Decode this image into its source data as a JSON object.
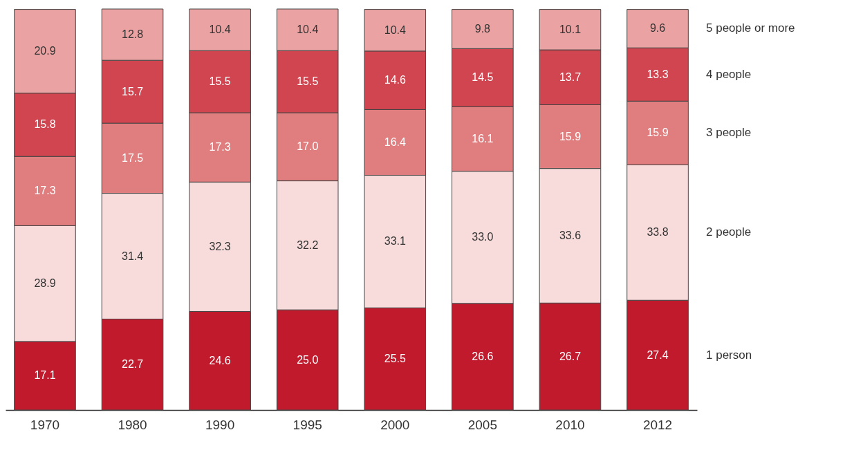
{
  "chart_data": {
    "type": "bar",
    "stacked": true,
    "categories": [
      "1970",
      "1980",
      "1990",
      "1995",
      "2000",
      "2005",
      "2010",
      "2012"
    ],
    "series": [
      {
        "name": "1 person",
        "color": "#c01a2c",
        "values": [
          17.1,
          22.7,
          24.6,
          25.0,
          25.5,
          26.6,
          26.7,
          27.4
        ],
        "value_labels": [
          "17.1",
          "22.7",
          "24.6",
          "25.0",
          "25.5",
          "26.6",
          "26.7",
          "27.4"
        ]
      },
      {
        "name": "2 people",
        "color": "#f8dcdb",
        "values": [
          28.9,
          31.4,
          32.3,
          32.2,
          33.1,
          33.0,
          33.6,
          33.8
        ],
        "value_labels": [
          "28.9",
          "31.4",
          "32.3",
          "32.2",
          "33.1",
          "33.0",
          "33.6",
          "33.8"
        ]
      },
      {
        "name": "3 people",
        "color": "#e07e7f",
        "values": [
          17.3,
          17.5,
          17.3,
          17.0,
          16.4,
          16.1,
          15.9,
          15.9
        ],
        "value_labels": [
          "17.3",
          "17.5",
          "17.3",
          "17.0",
          "16.4",
          "16.1",
          "15.9",
          "15.9"
        ]
      },
      {
        "name": "4 people",
        "color": "#d0454f",
        "values": [
          15.8,
          15.7,
          15.5,
          15.5,
          14.6,
          14.5,
          13.7,
          13.3
        ],
        "value_labels": [
          "15.8",
          "15.7",
          "15.5",
          "15.5",
          "14.6",
          "14.5",
          "13.7",
          "13.3"
        ]
      },
      {
        "name": "5 people or more",
        "color": "#eba2a2",
        "values": [
          20.9,
          12.8,
          10.4,
          10.4,
          10.4,
          9.8,
          10.1,
          9.6
        ],
        "value_labels": [
          "20.9",
          "12.8",
          "10.4",
          "10.4",
          "10.4",
          "9.8",
          "10.1",
          "9.6"
        ]
      }
    ]
  }
}
